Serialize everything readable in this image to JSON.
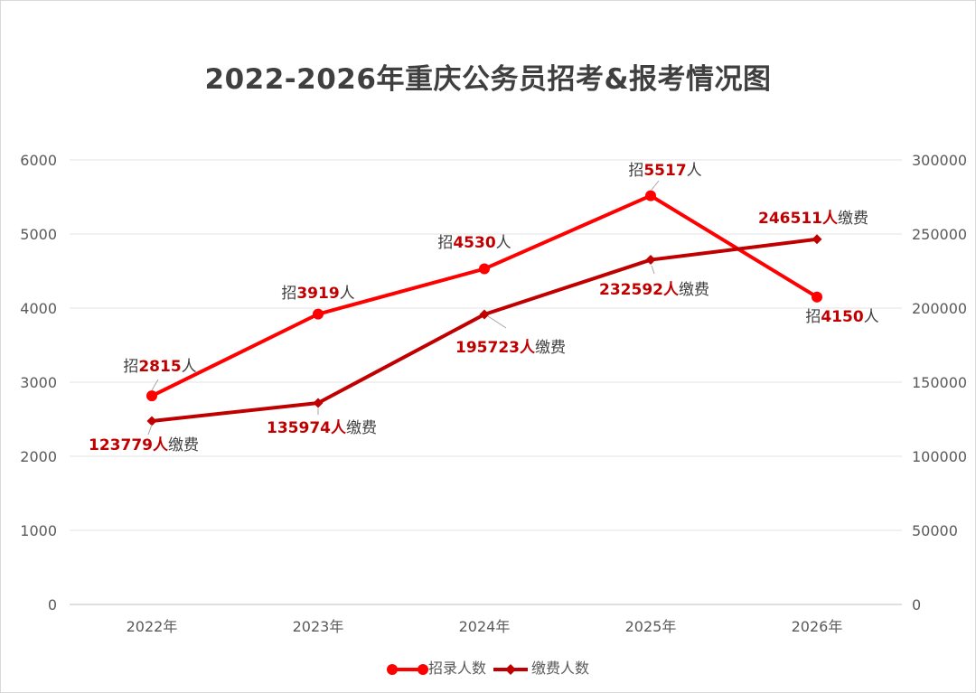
{
  "chart_data": {
    "type": "line",
    "title": "2022-2026年重庆公务员招考&报考情况图",
    "categories": [
      "2022年",
      "2023年",
      "2024年",
      "2025年",
      "2026年"
    ],
    "y_left": {
      "min": 0,
      "max": 6000,
      "ticks": [
        "0",
        "1000",
        "2000",
        "3000",
        "4000",
        "5000",
        "6000"
      ]
    },
    "y_right": {
      "min": 0,
      "max": 300000,
      "ticks": [
        "0",
        "50000",
        "100000",
        "150000",
        "200000",
        "250000",
        "300000"
      ]
    },
    "grid": true,
    "legend_position": "bottom",
    "series": [
      {
        "name": "招录人数",
        "axis": "left",
        "color": "#ff0000",
        "marker": "circle",
        "values": [
          2815,
          3919,
          4530,
          5517,
          4150
        ],
        "labels": [
          {
            "pre": "招",
            "val": "2815",
            "post": "人"
          },
          {
            "pre": "招",
            "val": "3919",
            "post": "人"
          },
          {
            "pre": "招",
            "val": "4530",
            "post": "人"
          },
          {
            "pre": "招",
            "val": "5517",
            "post": "人"
          },
          {
            "pre": "招",
            "val": "4150",
            "post": "人"
          }
        ]
      },
      {
        "name": "缴费人数",
        "axis": "right",
        "color": "#c00000",
        "marker": "diamond",
        "values": [
          123779,
          135974,
          195723,
          232592,
          246511
        ],
        "labels": [
          {
            "pre": "",
            "val": "123779人",
            "post": "缴费"
          },
          {
            "pre": "",
            "val": "135974人",
            "post": "缴费"
          },
          {
            "pre": "",
            "val": "195723人",
            "post": "缴费"
          },
          {
            "pre": "",
            "val": "232592人",
            "post": "缴费"
          },
          {
            "pre": "",
            "val": "246511人",
            "post": "缴费"
          }
        ]
      }
    ]
  }
}
